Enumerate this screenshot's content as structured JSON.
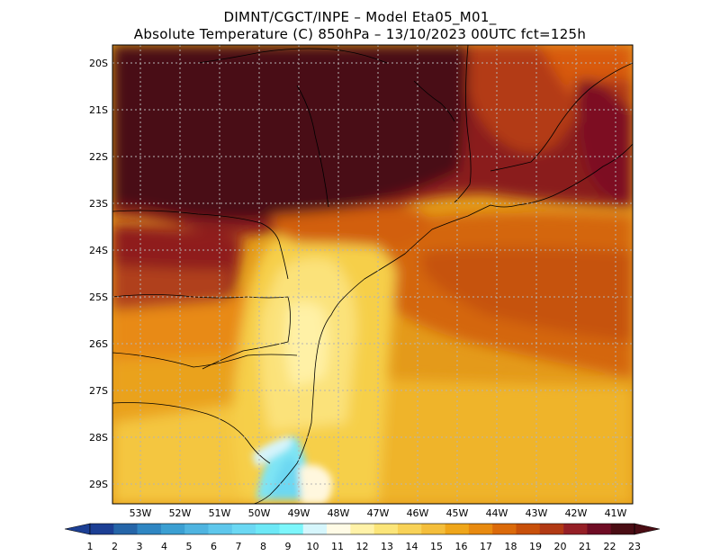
{
  "header": {
    "line1": "DIMNT/CGCT/INPE –  Model Eta05_M01_",
    "line2": "Absolute Temperature (C) 850hPa –  13/10/2023 00UTC fct=125h"
  },
  "map": {
    "lat_labels": [
      "20S",
      "21S",
      "22S",
      "23S",
      "24S",
      "25S",
      "26S",
      "27S",
      "28S",
      "29S"
    ],
    "lon_labels": [
      "53W",
      "52W",
      "51W",
      "50W",
      "49W",
      "48W",
      "47W",
      "46W",
      "45W",
      "44W",
      "43W",
      "42W",
      "41W"
    ],
    "lat_range": [
      -29.4,
      -19.9
    ],
    "lon_range": [
      -53.7,
      -40.6
    ],
    "grid": "dotted"
  },
  "colorbar": {
    "labels": [
      "1",
      "2",
      "3",
      "4",
      "5",
      "6",
      "7",
      "8",
      "9",
      "10",
      "11",
      "12",
      "13",
      "14",
      "15",
      "16",
      "17",
      "18",
      "19",
      "20",
      "21",
      "22",
      "23"
    ],
    "colors": [
      "#1c3f94",
      "#2565a8",
      "#2f86c2",
      "#3b9fd2",
      "#4fb4e0",
      "#5ec7ec",
      "#6bd8f3",
      "#6de8f6",
      "#7df6fb",
      "#d6f6fc",
      "#fffbe6",
      "#fff2a8",
      "#fbe579",
      "#f8d257",
      "#f4be3b",
      "#efa61a",
      "#e88a10",
      "#db6a0a",
      "#c8500a",
      "#b23a14",
      "#951f26",
      "#6f0c24",
      "#4a0d14"
    ]
  }
}
